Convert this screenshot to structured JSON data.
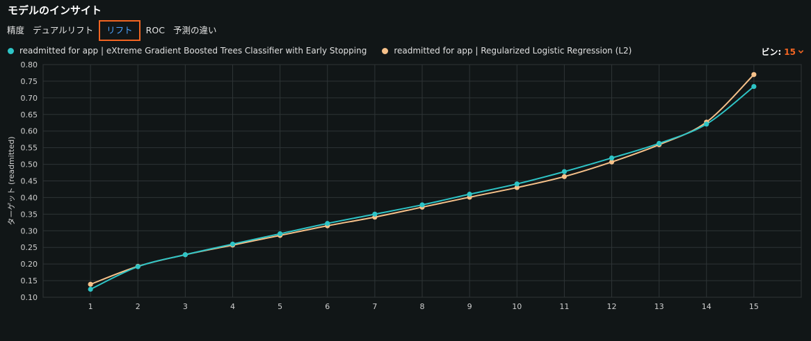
{
  "header": {
    "title": "モデルのインサイト"
  },
  "tabs": [
    {
      "label": "精度",
      "active": false
    },
    {
      "label": "デュアルリフト",
      "active": false
    },
    {
      "label": "リフト",
      "active": true
    },
    {
      "label": "ROC",
      "active": false
    },
    {
      "label": "予測の違い",
      "active": false
    }
  ],
  "bins": {
    "label": "ビン:",
    "value": "15"
  },
  "colors": {
    "accent": "#f26522",
    "active_tab": "#4da3ff",
    "background": "#111617"
  },
  "chart_data": {
    "type": "line",
    "xlabel": "",
    "ylabel": "ターゲット (readmitted)",
    "x": [
      1,
      2,
      3,
      4,
      5,
      6,
      7,
      8,
      9,
      10,
      11,
      12,
      13,
      14,
      15
    ],
    "ylim": [
      0.1,
      0.8
    ],
    "yticks": [
      "0.10",
      "0.15",
      "0.20",
      "0.25",
      "0.30",
      "0.35",
      "0.40",
      "0.45",
      "0.50",
      "0.55",
      "0.60",
      "0.65",
      "0.70",
      "0.75",
      "0.80"
    ],
    "xticks": [
      "1",
      "2",
      "3",
      "4",
      "5",
      "6",
      "7",
      "8",
      "9",
      "10",
      "11",
      "12",
      "13",
      "14",
      "15"
    ],
    "grid": true,
    "legend_position": "top-left",
    "series": [
      {
        "name": "readmitted for app | eXtreme Gradient Boosted Trees Classifier with Early Stopping",
        "color": "#2ec4c6",
        "values": [
          0.124,
          0.192,
          0.228,
          0.26,
          0.291,
          0.322,
          0.35,
          0.378,
          0.41,
          0.441,
          0.478,
          0.519,
          0.563,
          0.621,
          0.734
        ]
      },
      {
        "name": "readmitted for app | Regularized Logistic Regression (L2)",
        "color": "#f6c18a",
        "values": [
          0.139,
          0.193,
          0.228,
          0.257,
          0.286,
          0.315,
          0.341,
          0.371,
          0.401,
          0.43,
          0.463,
          0.507,
          0.559,
          0.627,
          0.77
        ]
      }
    ]
  }
}
